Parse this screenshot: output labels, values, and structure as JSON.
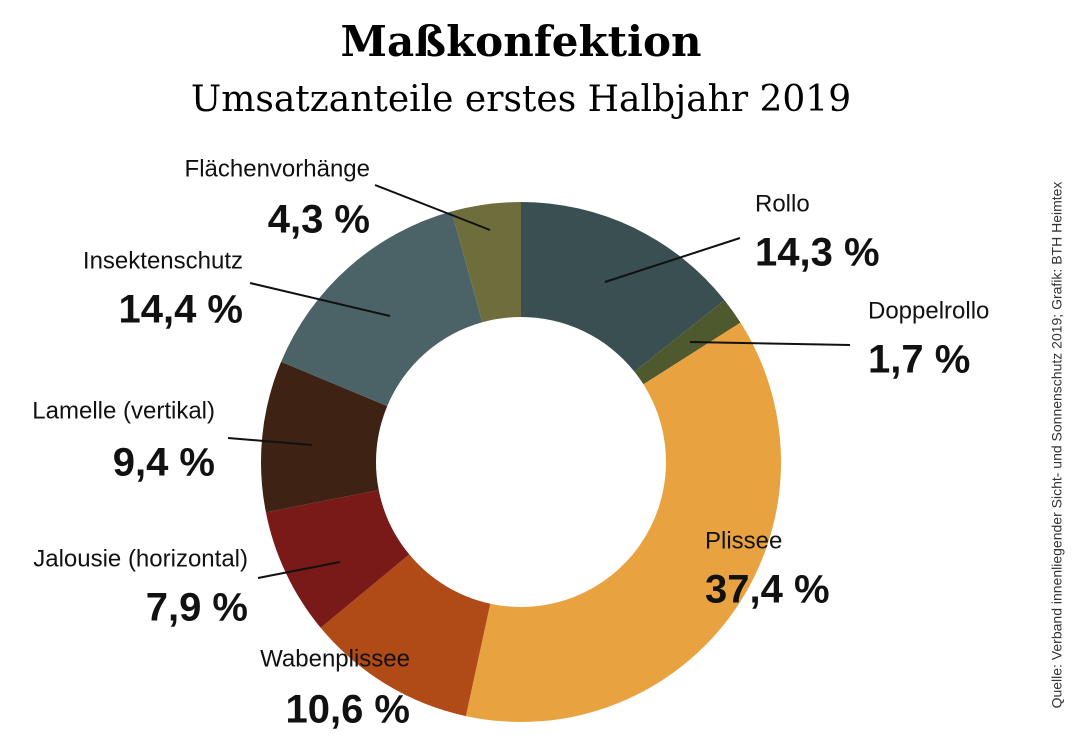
{
  "chart_data": {
    "type": "donut",
    "title": "Maßkonfektion",
    "subtitle": "Umsatzanteile erstes Halbjahr 2019",
    "source": "Quelle: Verband innenliegender Sicht- und Sonnenschutz 2019; Grafik: BTH Heimtex",
    "categories": [
      "Rollo",
      "Doppelrollo",
      "Plissee",
      "Wabenplissee",
      "Jalousie (horizontal)",
      "Lamelle (vertikal)",
      "Insektenschutz",
      "Flächenvorhänge"
    ],
    "values": [
      14.3,
      1.7,
      37.4,
      10.6,
      7.9,
      9.4,
      14.4,
      4.3
    ],
    "value_labels": [
      "14,3 %",
      "1,7 %",
      "37,4 %",
      "10,6 %",
      "7,9 %",
      "9,4 %",
      "14,4 %",
      "4,3 %"
    ],
    "colors": [
      "#3a4f52",
      "#4e5a2e",
      "#e8a340",
      "#b04a17",
      "#7a1a18",
      "#3e2314",
      "#4b6266",
      "#6e6e3c"
    ]
  }
}
